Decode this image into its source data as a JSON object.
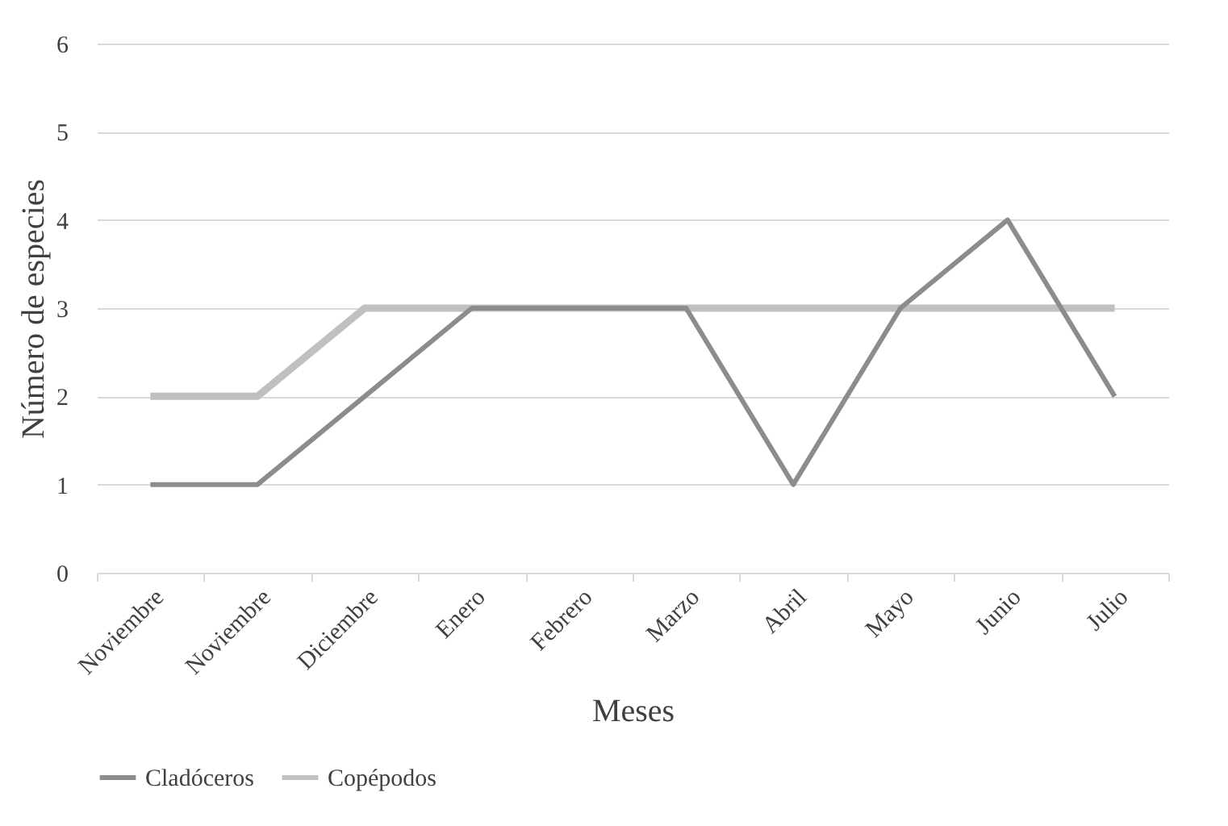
{
  "chart_data": {
    "type": "line",
    "xlabel": "Meses",
    "ylabel": "Número de especies",
    "categories": [
      "Noviembre",
      "Noviembre",
      "Diciembre",
      "Enero",
      "Febrero",
      "Marzo",
      "Abril",
      "Mayo",
      "Junio",
      "Julio"
    ],
    "series": [
      {
        "name": "Cladóceros",
        "color": "#8c8c8c",
        "values": [
          1,
          1,
          2,
          3,
          3,
          3,
          1,
          3,
          4,
          2
        ]
      },
      {
        "name": "Copépodos",
        "color": "#c0c0c0",
        "values": [
          2,
          2,
          3,
          3,
          3,
          3,
          3,
          3,
          3,
          3
        ]
      }
    ],
    "ylim": [
      0,
      6
    ],
    "yticks": [
      0,
      1,
      2,
      3,
      4,
      5,
      6
    ],
    "grid": "y",
    "legend": "bottom",
    "marker": "none",
    "line_style": "solid"
  }
}
